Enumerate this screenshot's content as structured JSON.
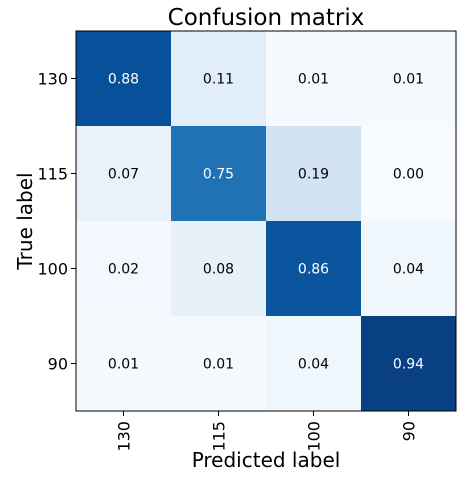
{
  "chart_data": {
    "type": "heatmap",
    "title": "Confusion matrix",
    "xlabel": "Predicted label",
    "ylabel": "True label",
    "x_categories": [
      "130",
      "115",
      "100",
      "90"
    ],
    "y_categories": [
      "130",
      "115",
      "100",
      "90"
    ],
    "values": [
      [
        0.88,
        0.11,
        0.01,
        0.01
      ],
      [
        0.07,
        0.75,
        0.19,
        0.0
      ],
      [
        0.02,
        0.08,
        0.86,
        0.04
      ],
      [
        0.01,
        0.01,
        0.04,
        0.94
      ]
    ],
    "value_range": [
      0,
      1
    ],
    "colormap": "Blues",
    "colors": {
      "low": "#f7fbff",
      "high": "#08306b",
      "text_dark": "#000000",
      "text_light": "#ffffff",
      "frame": "#000000"
    }
  }
}
